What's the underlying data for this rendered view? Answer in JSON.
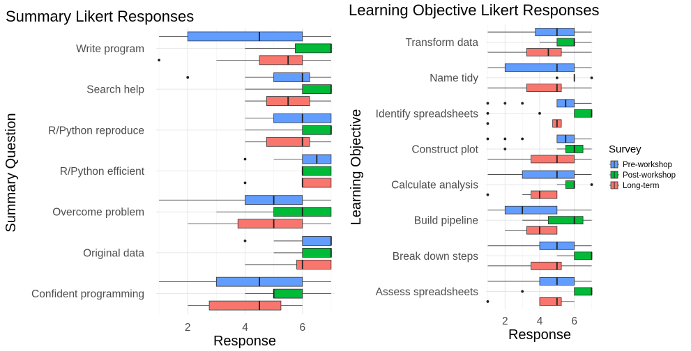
{
  "chart_data": [
    {
      "type": "boxplot",
      "title": "Summary Likert Responses",
      "xlabel": "Response",
      "ylabel": "Summary Question",
      "xlim": [
        0.9,
        7.1
      ],
      "xticks": [
        2,
        4,
        6
      ],
      "grid": true,
      "categories": [
        "Write program",
        "Search help",
        "R/Python reproduce",
        "R/Python efficient",
        "Overcome problem",
        "Original data",
        "Confident programming"
      ],
      "series": [
        {
          "name": "Pre-workshop",
          "boxes": [
            {
              "wlo": 1,
              "q1": 2,
              "med": 4.5,
              "q3": 6,
              "whi": 7,
              "outliers": []
            },
            {
              "wlo": 4,
              "q1": 5,
              "med": 6,
              "q3": 6.25,
              "whi": 7,
              "outliers": [
                2
              ]
            },
            {
              "wlo": 4,
              "q1": 5,
              "med": 6,
              "q3": 7,
              "whi": 7,
              "outliers": []
            },
            {
              "wlo": 5,
              "q1": 6,
              "med": 6.5,
              "q3": 7,
              "whi": 7,
              "outliers": [
                4
              ]
            },
            {
              "wlo": 1,
              "q1": 4,
              "med": 5,
              "q3": 6,
              "whi": 7,
              "outliers": []
            },
            {
              "wlo": 5,
              "q1": 6,
              "med": 7,
              "q3": 7,
              "whi": 7,
              "outliers": [
                4
              ]
            },
            {
              "wlo": 1,
              "q1": 3,
              "med": 4.5,
              "q3": 6,
              "whi": 7,
              "outliers": []
            }
          ]
        },
        {
          "name": "Post-workshop",
          "boxes": [
            {
              "wlo": 4,
              "q1": 5.75,
              "med": 7,
              "q3": 7,
              "whi": 7,
              "outliers": []
            },
            {
              "wlo": 4,
              "q1": 6,
              "med": 7,
              "q3": 7,
              "whi": 7,
              "outliers": []
            },
            {
              "wlo": 4,
              "q1": 6,
              "med": 7,
              "q3": 7,
              "whi": 7,
              "outliers": []
            },
            {
              "wlo": 6,
              "q1": 6,
              "med": 6,
              "q3": 7,
              "whi": 7,
              "outliers": []
            },
            {
              "wlo": 3,
              "q1": 5,
              "med": 6,
              "q3": 7,
              "whi": 7,
              "outliers": []
            },
            {
              "wlo": 5,
              "q1": 6,
              "med": 7,
              "q3": 7,
              "whi": 7,
              "outliers": []
            },
            {
              "wlo": 4,
              "q1": 5,
              "med": 5,
              "q3": 6,
              "whi": 7,
              "outliers": []
            }
          ]
        },
        {
          "name": "Long-term",
          "boxes": [
            {
              "wlo": 3,
              "q1": 4.5,
              "med": 5.5,
              "q3": 6,
              "whi": 7,
              "outliers": [
                1
              ]
            },
            {
              "wlo": 4,
              "q1": 4.75,
              "med": 5.5,
              "q3": 6.25,
              "whi": 7,
              "outliers": []
            },
            {
              "wlo": 4,
              "q1": 4.75,
              "med": 6,
              "q3": 6.25,
              "whi": 7,
              "outliers": []
            },
            {
              "wlo": 6,
              "q1": 6,
              "med": 6,
              "q3": 7,
              "whi": 7,
              "outliers": [
                4
              ]
            },
            {
              "wlo": 2,
              "q1": 3.75,
              "med": 5,
              "q3": 6,
              "whi": 7,
              "outliers": []
            },
            {
              "wlo": 4,
              "q1": 5.8,
              "med": 6,
              "q3": 7,
              "whi": 7,
              "outliers": []
            },
            {
              "wlo": 2,
              "q1": 2.75,
              "med": 4.5,
              "q3": 5.25,
              "whi": 6,
              "outliers": []
            }
          ]
        }
      ]
    },
    {
      "type": "boxplot",
      "title": "Learning Objective Likert Responses",
      "xlabel": "Response",
      "ylabel": "Learning Objective",
      "xlim": [
        0.9,
        7.1
      ],
      "xticks": [
        2,
        4,
        6
      ],
      "grid": true,
      "categories": [
        "Transform data",
        "Name tidy",
        "Identify spreadsheets",
        "Construct plot",
        "Calculate analysis",
        "Build pipeline",
        "Break down steps",
        "Assess spreadsheets"
      ],
      "series": [
        {
          "name": "Pre-workshop",
          "boxes": [
            {
              "wlo": 1,
              "q1": 3.75,
              "med": 5,
              "q3": 6,
              "whi": 7,
              "outliers": []
            },
            {
              "wlo": 1,
              "q1": 2,
              "med": 5,
              "q3": 6,
              "whi": 7,
              "outliers": []
            },
            {
              "wlo": 5,
              "q1": 5,
              "med": 5.5,
              "q3": 6,
              "whi": 7,
              "outliers": [
                1,
                2,
                3
              ]
            },
            {
              "wlo": 5,
              "q1": 5,
              "med": 5.5,
              "q3": 6,
              "whi": 7,
              "outliers": [
                1,
                2,
                3
              ]
            },
            {
              "wlo": 1,
              "q1": 3,
              "med": 5,
              "q3": 6,
              "whi": 7,
              "outliers": []
            },
            {
              "wlo": 1,
              "q1": 2,
              "med": 3,
              "q3": 5,
              "whi": 7,
              "outliers": []
            },
            {
              "wlo": 1,
              "q1": 4,
              "med": 5,
              "q3": 6,
              "whi": 7,
              "outliers": []
            },
            {
              "wlo": 1,
              "q1": 4,
              "med": 5,
              "q3": 6,
              "whi": 7,
              "outliers": []
            }
          ]
        },
        {
          "name": "Post-workshop",
          "boxes": [
            {
              "wlo": 4,
              "q1": 5,
              "med": 6,
              "q3": 6,
              "whi": 7,
              "outliers": []
            },
            {
              "wlo": 6,
              "q1": 6,
              "med": 6,
              "q3": 6,
              "whi": 6,
              "outliers": [
                5,
                7
              ]
            },
            {
              "wlo": 6,
              "q1": 6,
              "med": 7,
              "q3": 7,
              "whi": 7,
              "outliers": [
                1,
                4
              ]
            },
            {
              "wlo": 5,
              "q1": 5.5,
              "med": 6,
              "q3": 6.5,
              "whi": 7,
              "outliers": [
                2
              ]
            },
            {
              "wlo": 5,
              "q1": 5.5,
              "med": 6,
              "q3": 6,
              "whi": 6,
              "outliers": [
                7
              ]
            },
            {
              "wlo": 3,
              "q1": 4.5,
              "med": 6,
              "q3": 6.5,
              "whi": 7,
              "outliers": []
            },
            {
              "wlo": 5,
              "q1": 6,
              "med": 7,
              "q3": 7,
              "whi": 7,
              "outliers": []
            },
            {
              "wlo": 6,
              "q1": 6,
              "med": 7,
              "q3": 7,
              "whi": 7,
              "outliers": [
                3
              ]
            }
          ]
        },
        {
          "name": "Long-term",
          "boxes": [
            {
              "wlo": 1,
              "q1": 3.25,
              "med": 4.5,
              "q3": 5.25,
              "whi": 7,
              "outliers": []
            },
            {
              "wlo": 1,
              "q1": 3.25,
              "med": 5,
              "q3": 5.25,
              "whi": 7,
              "outliers": []
            },
            {
              "wlo": 4.75,
              "q1": 4.75,
              "med": 5,
              "q3": 5.25,
              "whi": 5.25,
              "outliers": [
                1
              ]
            },
            {
              "wlo": 1,
              "q1": 3.5,
              "med": 5,
              "q3": 6,
              "whi": 7,
              "outliers": []
            },
            {
              "wlo": 3,
              "q1": 3.5,
              "med": 4,
              "q3": 5,
              "whi": 5,
              "outliers": [
                1
              ]
            },
            {
              "wlo": 2,
              "q1": 3.25,
              "med": 4,
              "q3": 5,
              "whi": 5,
              "outliers": []
            },
            {
              "wlo": 1,
              "q1": 3.5,
              "med": 5,
              "q3": 5.25,
              "whi": 7,
              "outliers": []
            },
            {
              "wlo": 4,
              "q1": 4,
              "med": 5,
              "q3": 5.25,
              "whi": 6,
              "outliers": [
                1
              ]
            }
          ]
        }
      ]
    }
  ],
  "legend": {
    "title": "Survey",
    "items": [
      {
        "label": "Pre-workshop",
        "color": "#619CFF"
      },
      {
        "label": "Post-workshop",
        "color": "#00BA38"
      },
      {
        "label": "Long-term",
        "color": "#F8766D"
      }
    ]
  }
}
